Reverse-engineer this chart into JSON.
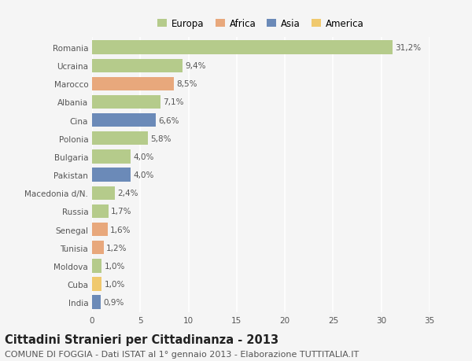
{
  "categories": [
    "Romania",
    "Ucraina",
    "Marocco",
    "Albania",
    "Cina",
    "Polonia",
    "Bulgaria",
    "Pakistan",
    "Macedonia d/N.",
    "Russia",
    "Senegal",
    "Tunisia",
    "Moldova",
    "Cuba",
    "India"
  ],
  "values": [
    31.2,
    9.4,
    8.5,
    7.1,
    6.6,
    5.8,
    4.0,
    4.0,
    2.4,
    1.7,
    1.6,
    1.2,
    1.0,
    1.0,
    0.9
  ],
  "labels": [
    "31,2%",
    "9,4%",
    "8,5%",
    "7,1%",
    "6,6%",
    "5,8%",
    "4,0%",
    "4,0%",
    "2,4%",
    "1,7%",
    "1,6%",
    "1,2%",
    "1,0%",
    "1,0%",
    "0,9%"
  ],
  "continents": [
    "Europa",
    "Europa",
    "Africa",
    "Europa",
    "Asia",
    "Europa",
    "Europa",
    "Asia",
    "Europa",
    "Europa",
    "Africa",
    "Africa",
    "Europa",
    "America",
    "Asia"
  ],
  "colors": {
    "Europa": "#b5cb8b",
    "Africa": "#e8a87c",
    "Asia": "#6b8ab8",
    "America": "#f0c96e"
  },
  "xlim": [
    0,
    35
  ],
  "xticks": [
    0,
    5,
    10,
    15,
    20,
    25,
    30,
    35
  ],
  "title": "Cittadini Stranieri per Cittadinanza - 2013",
  "subtitle": "COMUNE DI FOGGIA - Dati ISTAT al 1° gennaio 2013 - Elaborazione TUTTITALIA.IT",
  "background_color": "#f5f5f5",
  "grid_color": "#ffffff",
  "bar_height": 0.75,
  "title_fontsize": 10.5,
  "subtitle_fontsize": 8,
  "label_fontsize": 7.5,
  "tick_fontsize": 7.5,
  "legend_fontsize": 8.5
}
